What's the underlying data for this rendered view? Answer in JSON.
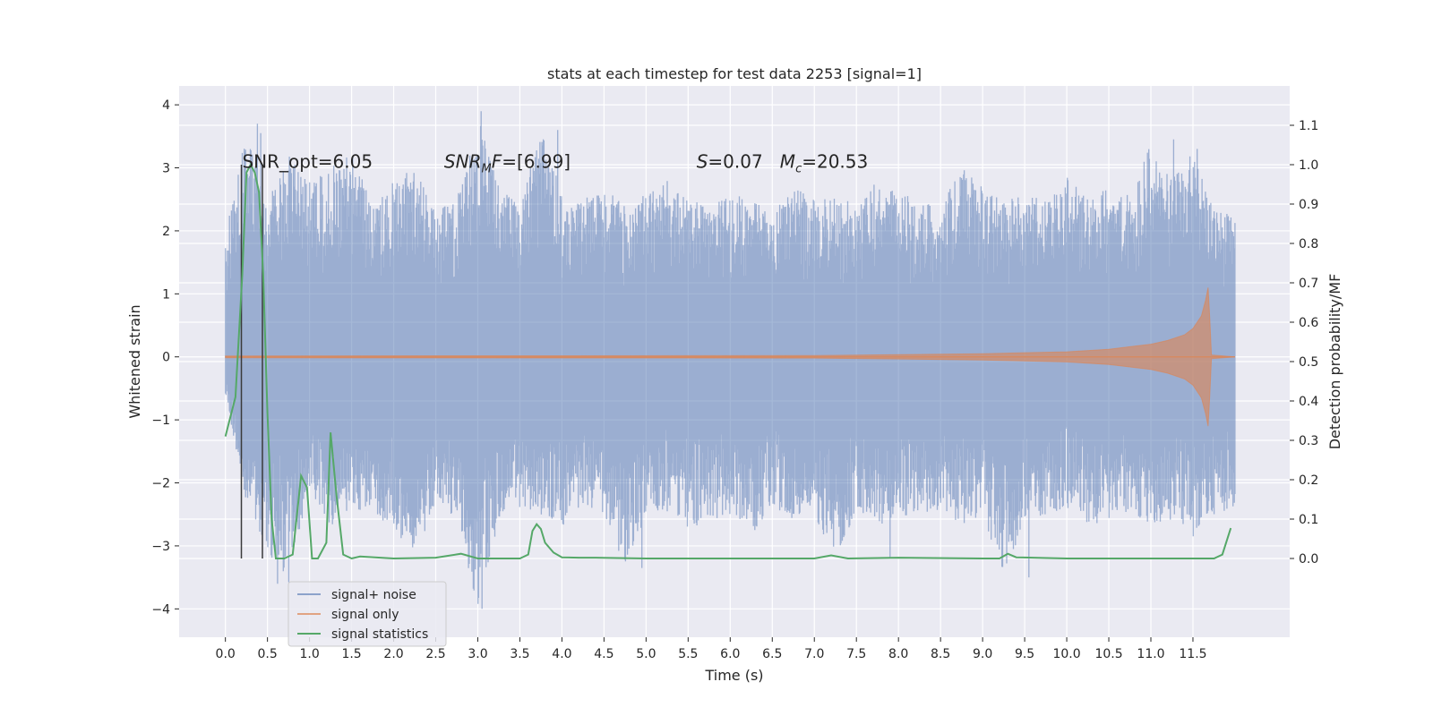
{
  "chart_data": {
    "type": "line",
    "title": "stats at each timestep for test data 2253 [signal=1]",
    "xlabel": "Time (s)",
    "ylabel": "Whitened strain",
    "y2label": "Detection probability/MF",
    "xlim": [
      -0.55,
      12.65
    ],
    "ylim": [
      -4.45,
      4.3
    ],
    "y2lim": [
      -0.2,
      1.2
    ],
    "xticks": [
      0.0,
      0.5,
      1.0,
      1.5,
      2.0,
      2.5,
      3.0,
      3.5,
      4.0,
      4.5,
      5.0,
      5.5,
      6.0,
      6.5,
      7.0,
      7.5,
      8.0,
      8.5,
      9.0,
      9.5,
      10.0,
      10.5,
      11.0,
      11.5
    ],
    "xtick_labels": [
      "0.0",
      "0.5",
      "1.0",
      "1.5",
      "2.0",
      "2.5",
      "3.0",
      "3.5",
      "4.0",
      "4.5",
      "5.0",
      "5.5",
      "6.0",
      "6.5",
      "7.0",
      "7.5",
      "8.0",
      "8.5",
      "9.0",
      "9.5",
      "10.0",
      "10.5",
      "11.0",
      "11.5"
    ],
    "yticks": [
      -4,
      -3,
      -2,
      -1,
      0,
      1,
      2,
      3,
      4
    ],
    "ytick_labels": [
      "−4",
      "−3",
      "−2",
      "−1",
      "0",
      "1",
      "2",
      "3",
      "4"
    ],
    "y2ticks": [
      0.0,
      0.1,
      0.2,
      0.3,
      0.4,
      0.5,
      0.6,
      0.7,
      0.8,
      0.9,
      1.0,
      1.1
    ],
    "y2tick_labels": [
      "0.0",
      "0.1",
      "0.2",
      "0.3",
      "0.4",
      "0.5",
      "0.6",
      "0.7",
      "0.8",
      "0.9",
      "1.0",
      "1.1"
    ],
    "grid": true,
    "legend_position": "lower-left",
    "annotations": [
      {
        "text": "SNR_opt=6.05",
        "x": 0.2,
        "y": 3.0
      },
      {
        "text": "SNR_MF=[6.99]",
        "x": 2.6,
        "y": 3.0
      },
      {
        "text": "S=0.07   M_c=20.53",
        "x": 5.6,
        "y": 3.0
      }
    ],
    "vertical_lines": [
      0.19,
      0.44
    ],
    "series": [
      {
        "name": "signal+ noise",
        "color": "#4c72b0",
        "axis": "left",
        "x_range": [
          0.0,
          12.0
        ],
        "envelope_upper": [
          1.9,
          3.7,
          2.6,
          3.2,
          2.8,
          3.0,
          3.3,
          2.4,
          2.8,
          3.1,
          2.3,
          2.5,
          3.9,
          2.7,
          2.4,
          3.6,
          2.6,
          2.5,
          2.7,
          2.4,
          2.6,
          2.8,
          2.5,
          2.4,
          2.6,
          2.5,
          2.3,
          2.7,
          2.5,
          2.6,
          2.4,
          2.8,
          2.6,
          2.5,
          2.4,
          3.0,
          2.7,
          2.5,
          2.6,
          2.5,
          2.9,
          2.5,
          2.7,
          2.6,
          3.4,
          2.8,
          3.3,
          2.4,
          2.2
        ],
        "envelope_lower": [
          -0.7,
          -2.3,
          -3.1,
          -3.6,
          -2.1,
          -2.7,
          -2.4,
          -2.5,
          -2.7,
          -3.2,
          -2.3,
          -2.6,
          -4.0,
          -2.6,
          -2.4,
          -2.5,
          -2.7,
          -2.4,
          -2.6,
          -3.4,
          -2.5,
          -2.5,
          -2.8,
          -2.6,
          -2.5,
          -2.9,
          -2.4,
          -2.6,
          -2.5,
          -3.3,
          -2.4,
          -2.7,
          -2.5,
          -2.6,
          -2.4,
          -2.7,
          -2.5,
          -3.5,
          -2.6,
          -2.5,
          -2.4,
          -2.8,
          -2.6,
          -2.5,
          -2.7,
          -2.6,
          -2.9,
          -2.5,
          -2.4
        ],
        "spikes": [
          [
            0.38,
            3.7
          ],
          [
            0.42,
            3.55
          ],
          [
            3.04,
            3.9
          ],
          [
            3.95,
            3.6
          ],
          [
            11.27,
            3.45
          ],
          [
            11.55,
            3.3
          ],
          [
            3.05,
            -4.0
          ],
          [
            0.62,
            -3.6
          ],
          [
            4.95,
            -3.35
          ],
          [
            9.55,
            -3.5
          ],
          [
            7.9,
            -3.2
          ]
        ]
      },
      {
        "name": "signal only",
        "color": "#dd8452",
        "axis": "left",
        "x": [
          0.0,
          7.0,
          9.0,
          10.0,
          10.5,
          11.0,
          11.2,
          11.4,
          11.5,
          11.6,
          11.65,
          11.68,
          11.7,
          11.72,
          12.0
        ],
        "amplitude": [
          0.015,
          0.02,
          0.05,
          0.08,
          0.12,
          0.2,
          0.26,
          0.35,
          0.45,
          0.65,
          0.9,
          1.1,
          0.6,
          0.03,
          0.0
        ]
      },
      {
        "name": "signal statistics",
        "color": "#55a868",
        "axis": "right",
        "x": [
          0.0,
          0.12,
          0.2,
          0.25,
          0.3,
          0.35,
          0.4,
          0.45,
          0.5,
          0.55,
          0.6,
          0.65,
          0.7,
          0.8,
          0.9,
          0.97,
          1.03,
          1.1,
          1.2,
          1.25,
          1.32,
          1.4,
          1.5,
          1.6,
          2.0,
          2.5,
          2.8,
          3.0,
          3.5,
          3.6,
          3.65,
          3.7,
          3.75,
          3.8,
          3.9,
          4.0,
          4.2,
          4.4,
          5.0,
          6.0,
          7.0,
          7.2,
          7.4,
          8.0,
          9.0,
          9.2,
          9.3,
          9.4,
          10.0,
          11.0,
          11.5,
          11.75,
          11.85,
          11.95
        ],
        "y": [
          0.31,
          0.41,
          0.72,
          0.98,
          1.0,
          0.98,
          0.93,
          0.72,
          0.37,
          0.1,
          0.0,
          0.0,
          0.0,
          0.01,
          0.21,
          0.18,
          0.0,
          0.0,
          0.04,
          0.32,
          0.16,
          0.01,
          0.0,
          0.005,
          0.0,
          0.002,
          0.012,
          0.0,
          0.0,
          0.01,
          0.07,
          0.087,
          0.075,
          0.04,
          0.015,
          0.003,
          0.002,
          0.002,
          0.0,
          0.0,
          0.0,
          0.008,
          0.0,
          0.002,
          0.0,
          0.0,
          0.012,
          0.003,
          0.0,
          0.0,
          0.0,
          0.0,
          0.01,
          0.077
        ]
      }
    ]
  }
}
